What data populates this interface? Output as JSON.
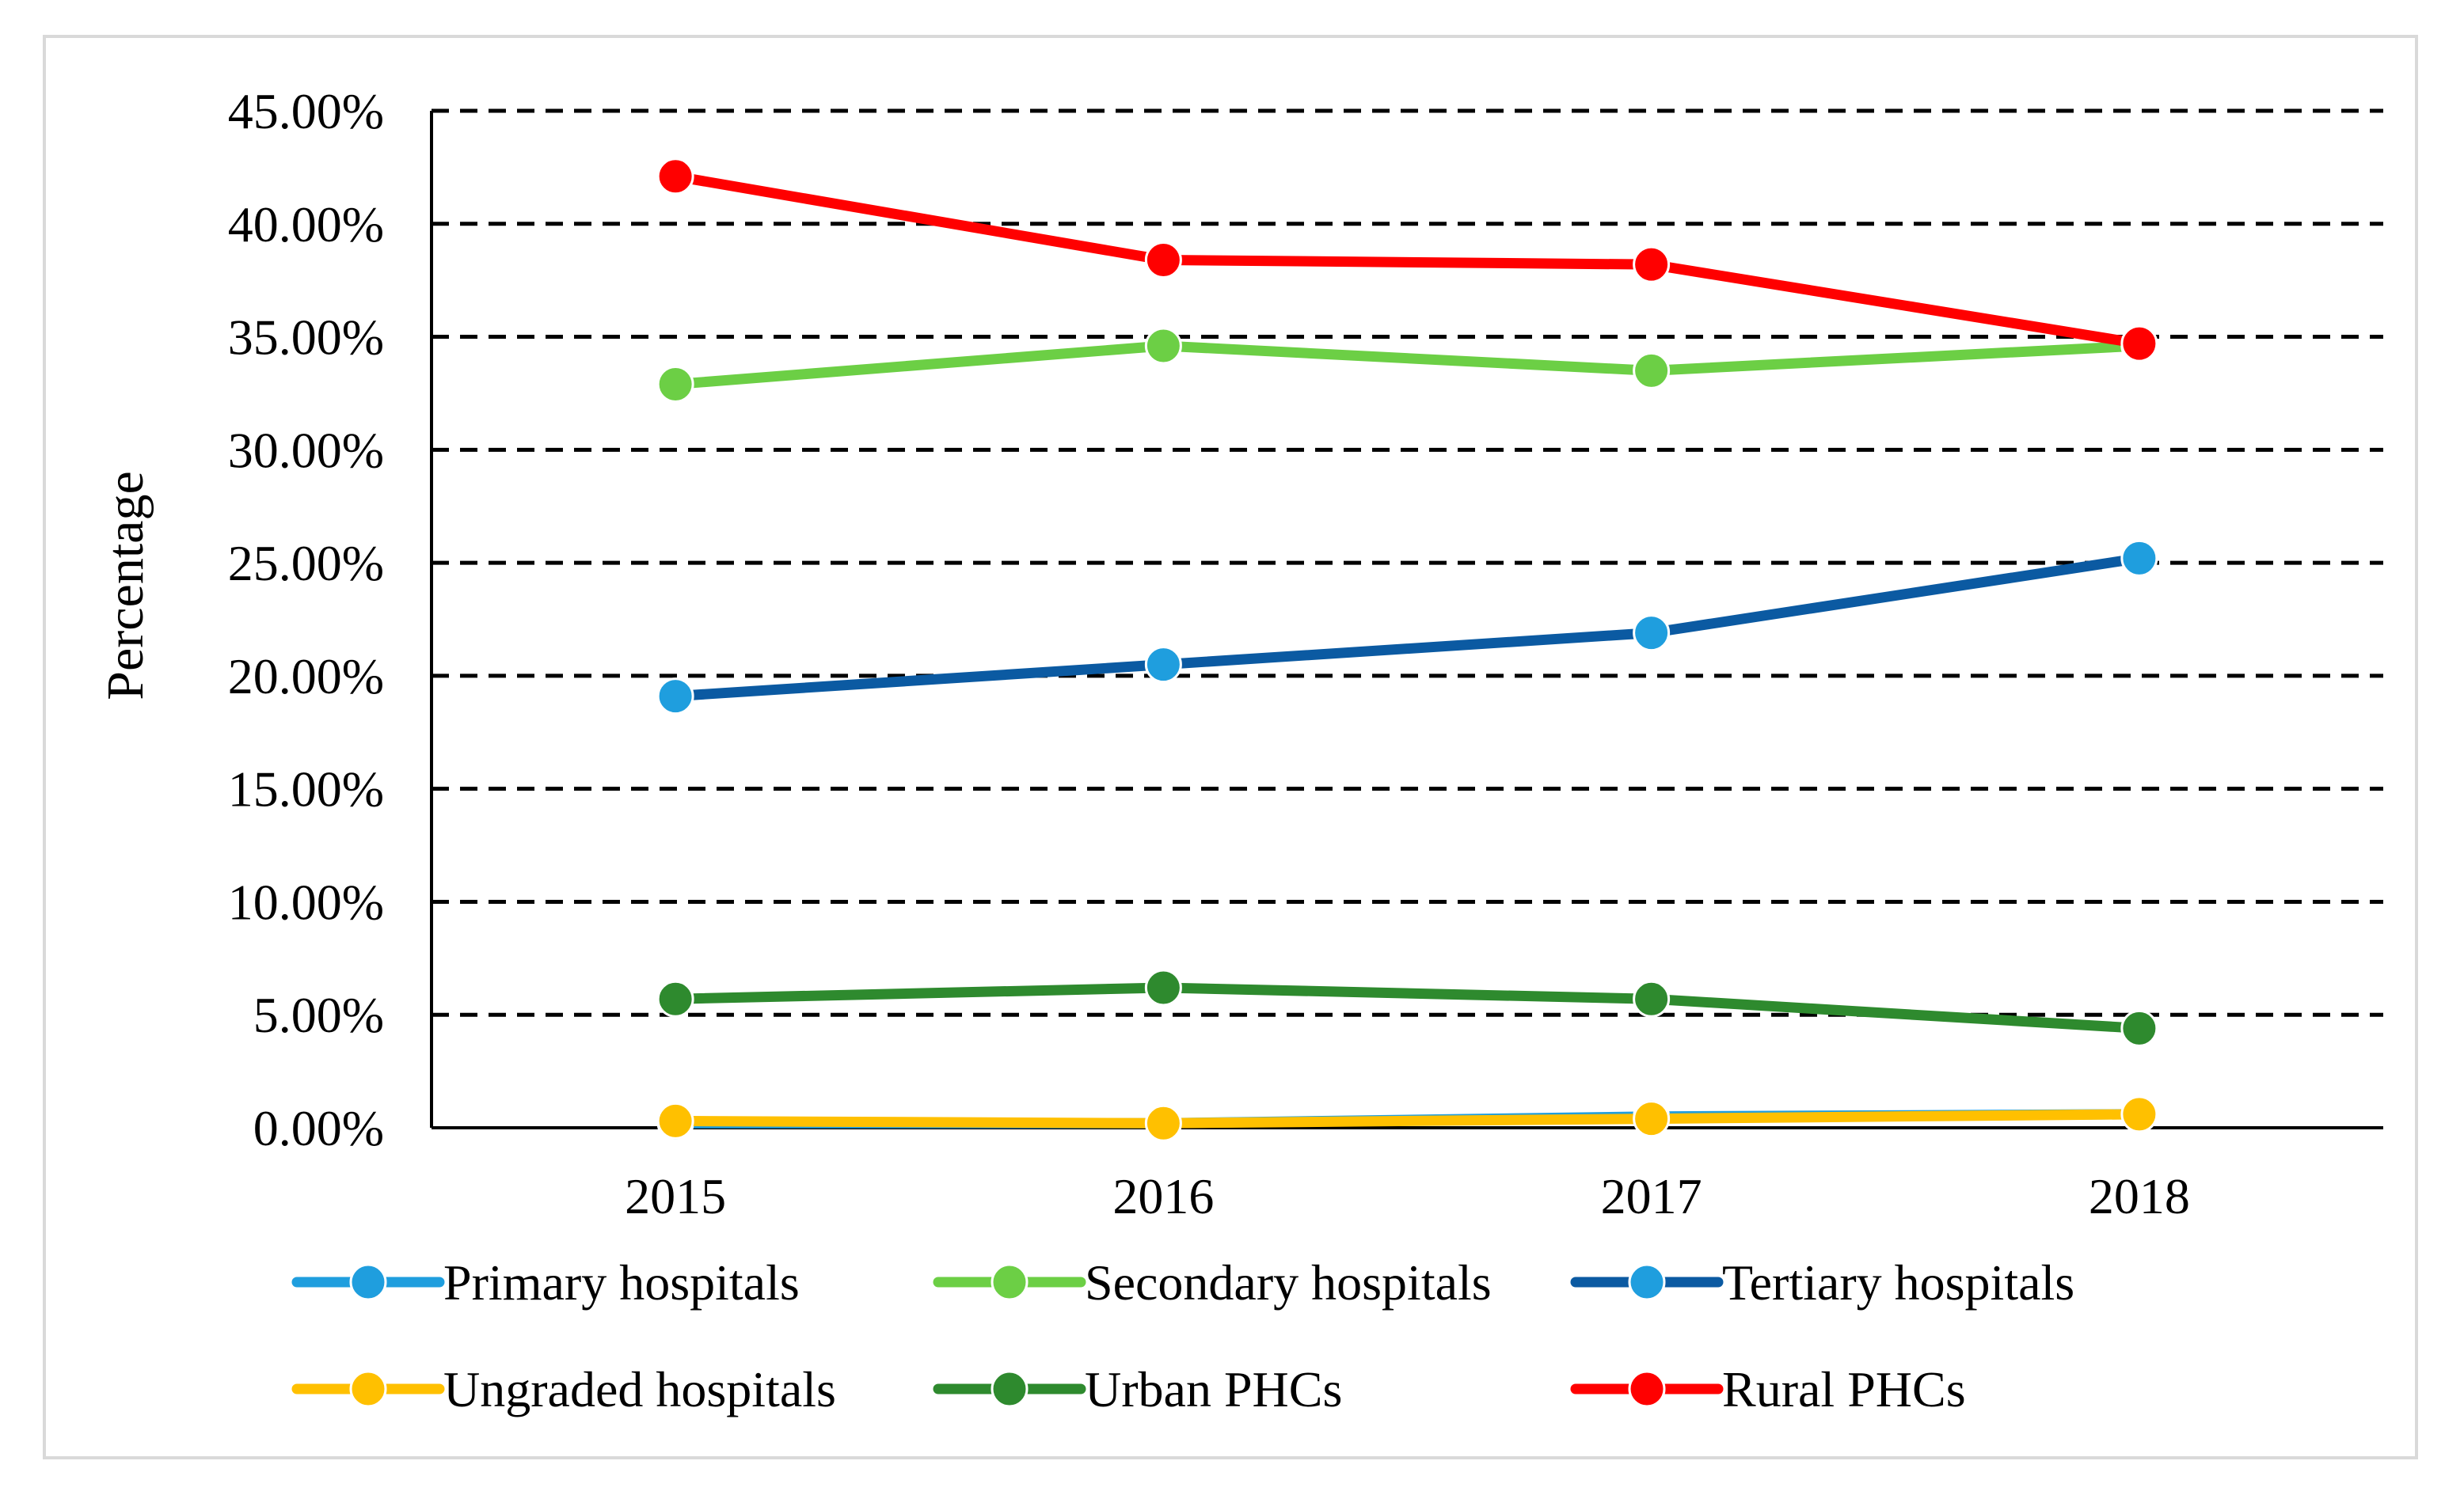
{
  "chart_data": {
    "type": "line",
    "title": "",
    "xlabel": "",
    "ylabel": "Percentage",
    "categories": [
      "2015",
      "2016",
      "2017",
      "2018"
    ],
    "ylim": [
      0,
      0.45
    ],
    "y_tick_values": [
      0,
      0.05,
      0.1,
      0.15,
      0.2,
      0.25,
      0.3,
      0.35,
      0.4,
      0.45
    ],
    "y_tick_labels": [
      "0.00%",
      "5.00%",
      "10.00%",
      "15.00%",
      "20.00%",
      "25.00%",
      "30.00%",
      "35.00%",
      "40.00%",
      "45.00%"
    ],
    "grid": "horizontal dashed",
    "legend_position": "bottom",
    "series": [
      {
        "name": "Primary hospitals",
        "color": "#1f9ede",
        "marker_color": "#1f9ede",
        "values": [
          0.002,
          0.002,
          0.005,
          0.006
        ]
      },
      {
        "name": "Secondary hospitals",
        "color": "#6ccf45",
        "marker_color": "#6ccf45",
        "values": [
          0.329,
          0.346,
          0.335,
          0.346
        ]
      },
      {
        "name": "Tertiary hospitals",
        "color": "#0b5aa2",
        "marker_color": "#1f9ede",
        "values": [
          0.191,
          0.205,
          0.219,
          0.252
        ]
      },
      {
        "name": "Ungraded hospitals",
        "color": "#ffc000",
        "marker_color": "#ffc000",
        "values": [
          0.003,
          0.002,
          0.004,
          0.006
        ]
      },
      {
        "name": "Urban PHCs",
        "color": "#2e8a2e",
        "marker_color": "#2e8a2e",
        "values": [
          0.057,
          0.062,
          0.057,
          0.044
        ]
      },
      {
        "name": "Rural PHCs",
        "color": "#ff0000",
        "marker_color": "#ff0000",
        "values": [
          0.421,
          0.384,
          0.382,
          0.347
        ]
      }
    ]
  }
}
